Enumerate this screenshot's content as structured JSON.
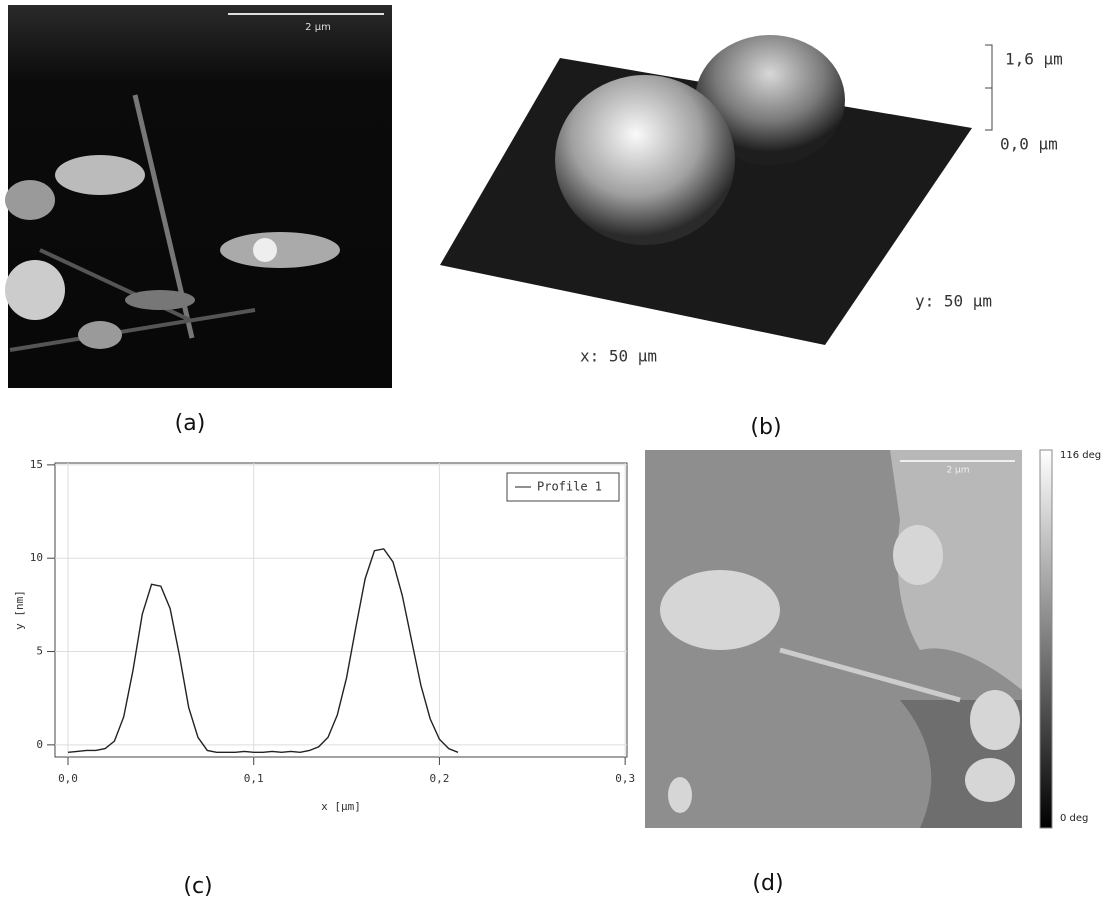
{
  "panel_labels": [
    "(a)",
    "(b)",
    "(c)",
    "(d)"
  ],
  "panel_a": {
    "scale_label": "2 µm"
  },
  "panel_b": {
    "z_labels": [
      "1,6 µm",
      "0,0 µm"
    ],
    "x_label": "x: 50 µm",
    "y_label": "y: 50 µm"
  },
  "chart_data": {
    "type": "line",
    "x_label": "x [µm]",
    "y_label": "y [nm]",
    "x": [
      0,
      0.005,
      0.01,
      0.015,
      0.02,
      0.025,
      0.03,
      0.035,
      0.04,
      0.045,
      0.05,
      0.055,
      0.06,
      0.065,
      0.07,
      0.075,
      0.08,
      0.085,
      0.09,
      0.095,
      0.1,
      0.105,
      0.11,
      0.115,
      0.12,
      0.125,
      0.13,
      0.135,
      0.14,
      0.145,
      0.15,
      0.155,
      0.16,
      0.165,
      0.17,
      0.175,
      0.18,
      0.185,
      0.19,
      0.195,
      0.2,
      0.205,
      0.21
    ],
    "series": [
      {
        "name": "Profile 1",
        "color": "#222222",
        "values": [
          -0.4,
          -0.35,
          -0.3,
          -0.3,
          -0.2,
          0.2,
          1.5,
          4.0,
          7.0,
          8.6,
          8.5,
          7.3,
          4.8,
          2.0,
          0.4,
          -0.3,
          -0.4,
          -0.4,
          -0.4,
          -0.35,
          -0.4,
          -0.4,
          -0.35,
          -0.4,
          -0.35,
          -0.4,
          -0.3,
          -0.1,
          0.4,
          1.6,
          3.6,
          6.3,
          8.9,
          10.4,
          10.5,
          9.8,
          8.0,
          5.6,
          3.2,
          1.4,
          0.3,
          -0.2,
          -0.4
        ]
      }
    ],
    "xlim": [
      -0.007,
      0.301
    ],
    "ylim": [
      -0.65,
      15.1
    ],
    "xticks": [
      {
        "value": 0,
        "label": "0,0"
      },
      {
        "value": 0.1,
        "label": "0,1"
      },
      {
        "value": 0.2,
        "label": "0,2"
      },
      {
        "value": 0.3,
        "label": "0,3"
      }
    ],
    "yticks": [
      0,
      5,
      10,
      15
    ],
    "grid": true,
    "legend": "upper right"
  },
  "panel_d": {
    "scale_label": "2 µm",
    "colorbar_labels": [
      "116 deg",
      "0 deg"
    ]
  }
}
